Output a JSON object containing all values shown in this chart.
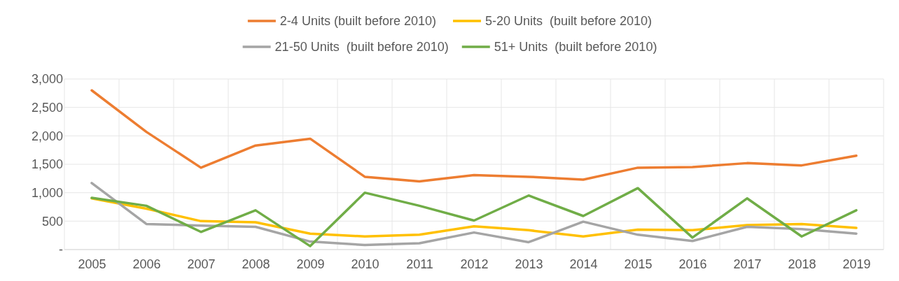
{
  "chart_data": {
    "type": "line",
    "categories": [
      "2005",
      "2006",
      "2007",
      "2008",
      "2009",
      "2010",
      "2011",
      "2012",
      "2013",
      "2014",
      "2015",
      "2016",
      "2017",
      "2018",
      "2019"
    ],
    "series": [
      {
        "name": "2-4 Units (built before 2010)",
        "color": "#ed7d31",
        "values": [
          2800,
          2070,
          1440,
          1830,
          1950,
          1280,
          1200,
          1310,
          1280,
          1230,
          1440,
          1450,
          1520,
          1480,
          1650
        ]
      },
      {
        "name": "5-20 Units  (built before 2010)",
        "color": "#ffc000",
        "values": [
          900,
          720,
          500,
          480,
          280,
          230,
          260,
          410,
          340,
          230,
          350,
          340,
          430,
          450,
          380
        ]
      },
      {
        "name": "21-50 Units  (built before 2010)",
        "color": "#a5a5a5",
        "values": [
          1170,
          450,
          420,
          400,
          140,
          80,
          110,
          300,
          130,
          490,
          260,
          150,
          400,
          360,
          280
        ]
      },
      {
        "name": "51+ Units  (built before 2010)",
        "color": "#70ad47",
        "values": [
          910,
          770,
          310,
          690,
          60,
          1000,
          770,
          510,
          950,
          590,
          1080,
          210,
          900,
          230,
          690
        ]
      }
    ],
    "ylim": [
      0,
      3000
    ],
    "yticks": [
      {
        "value": 0,
        "label": "-"
      },
      {
        "value": 500,
        "label": "500"
      },
      {
        "value": 1000,
        "label": "1,000"
      },
      {
        "value": 1500,
        "label": "1,500"
      },
      {
        "value": 2000,
        "label": "2,000"
      },
      {
        "value": 2500,
        "label": "2,500"
      },
      {
        "value": 3000,
        "label": "3,000"
      }
    ],
    "grid": true,
    "legend": "top",
    "marker": "none",
    "line_style": "solid"
  }
}
